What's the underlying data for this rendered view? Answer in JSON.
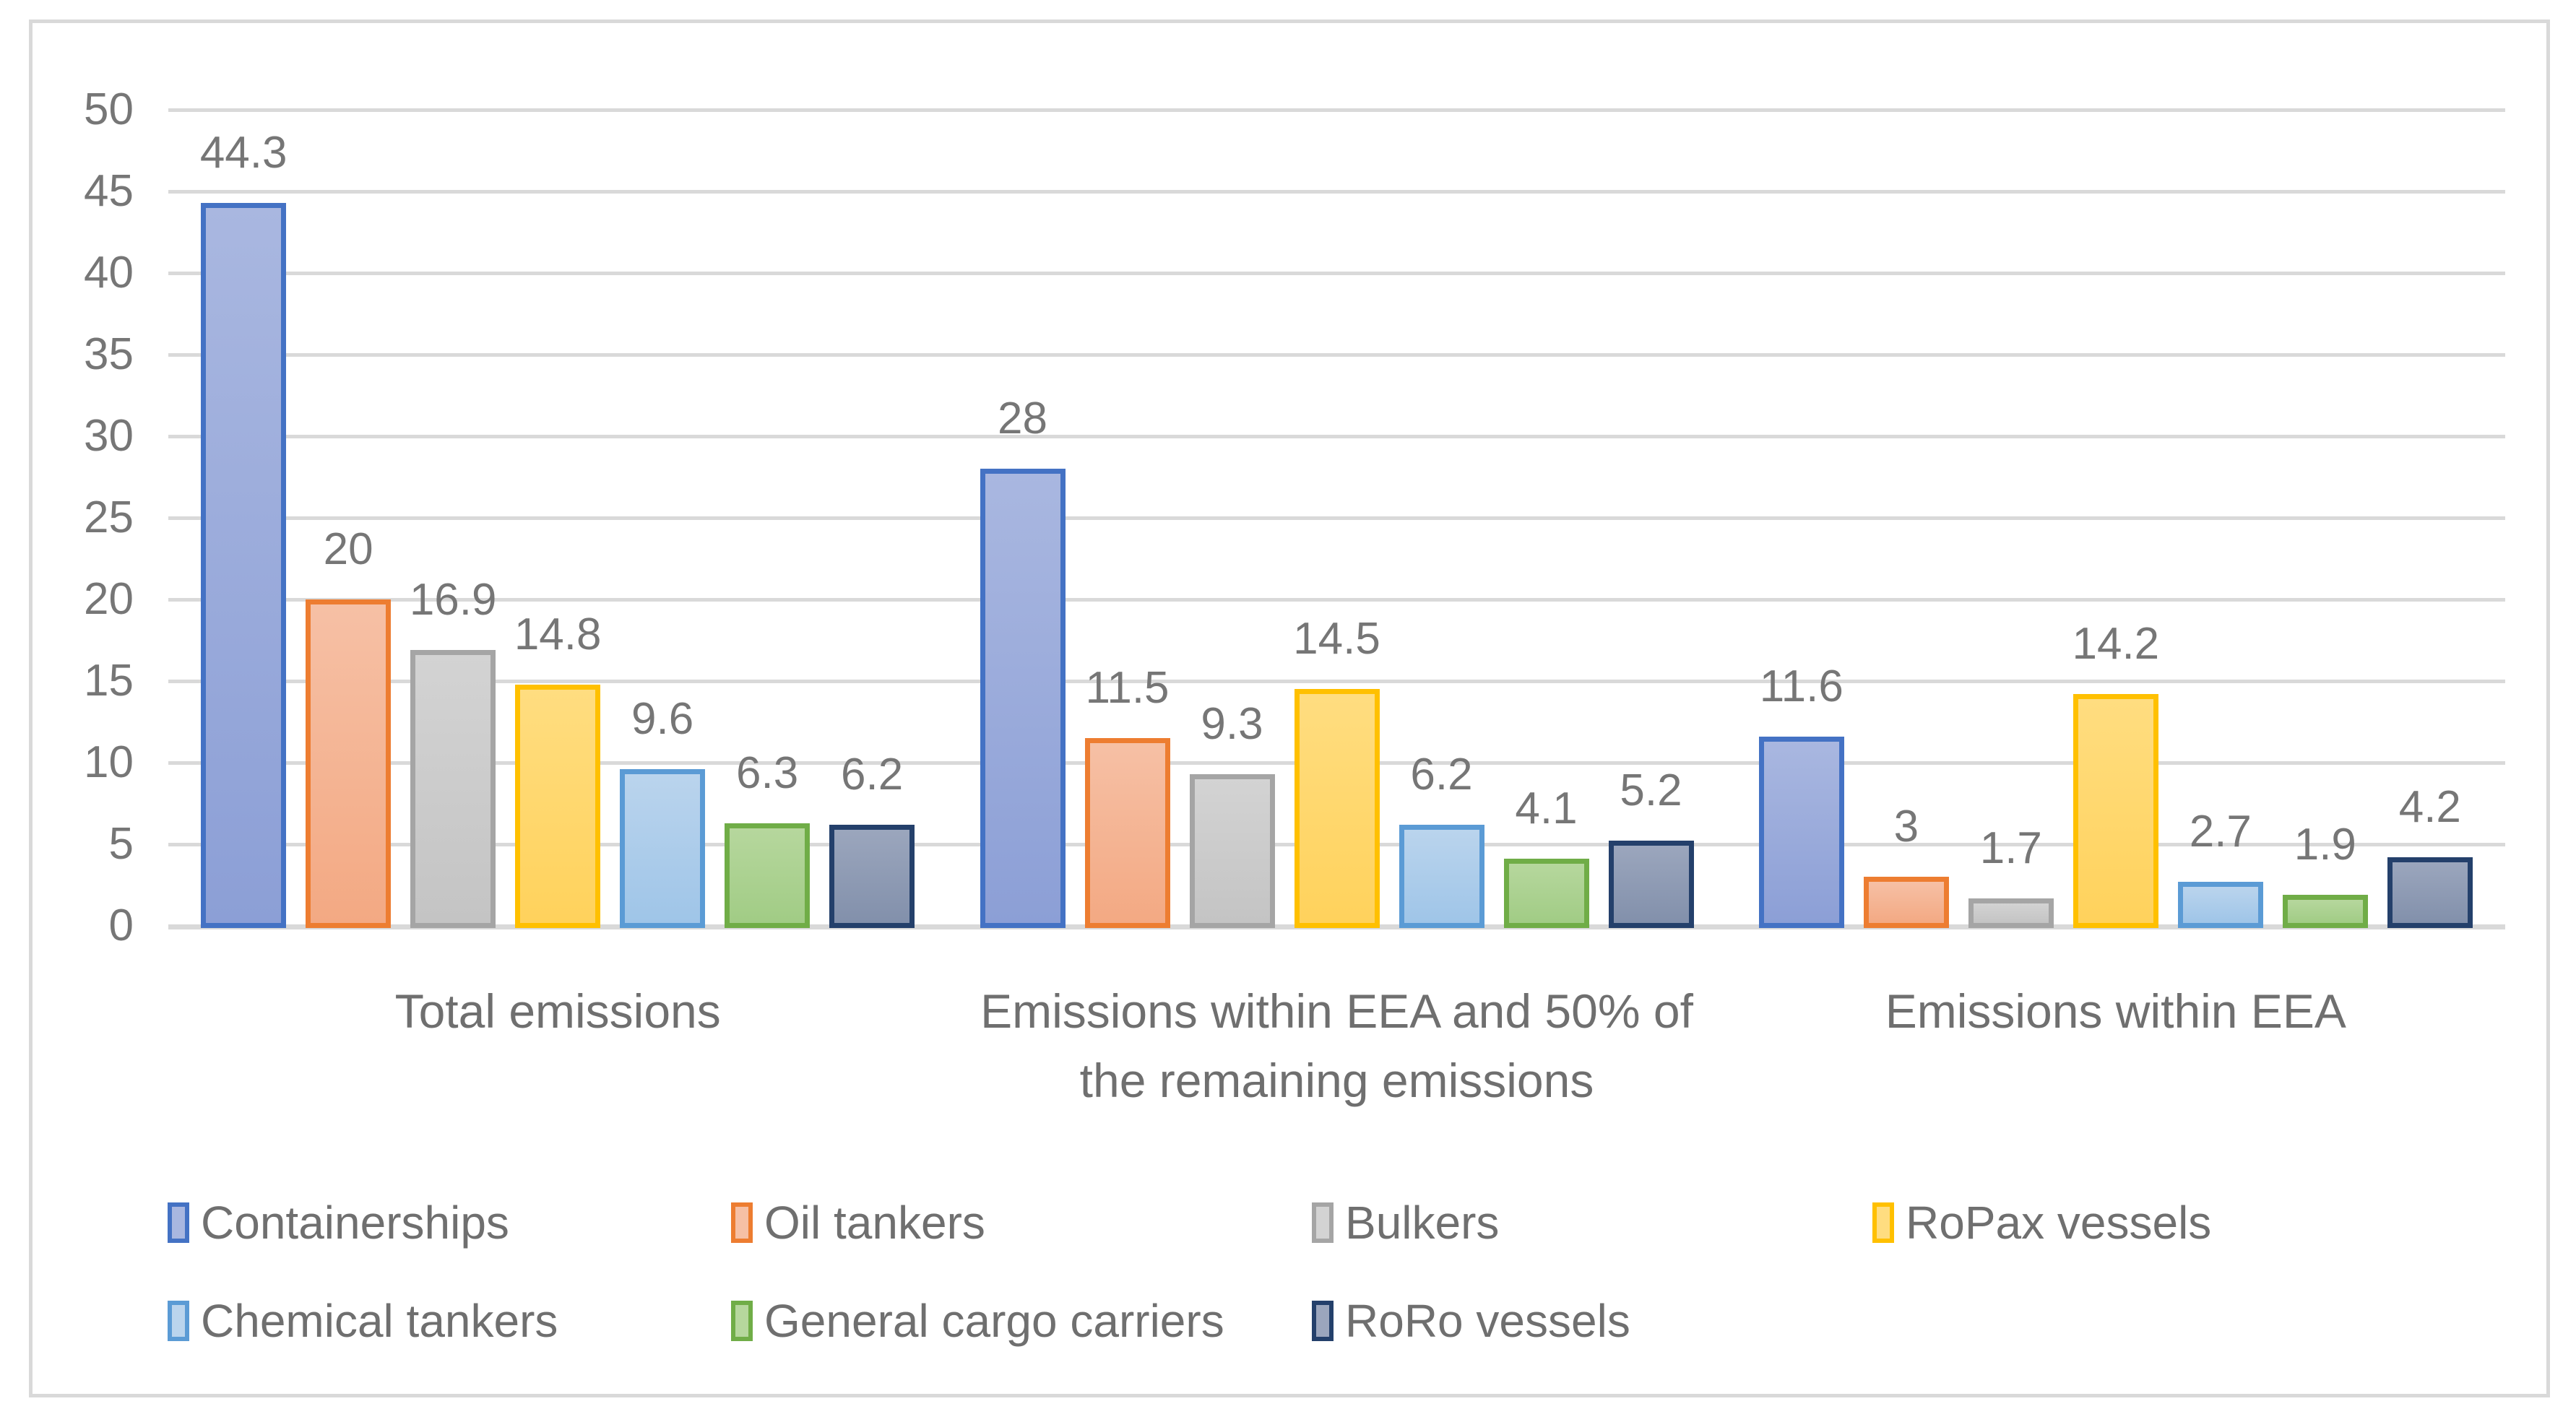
{
  "chart_data": {
    "type": "bar",
    "title": "",
    "xlabel": "",
    "ylabel": "",
    "ylim": [
      0,
      50
    ],
    "ytick_step": 5,
    "yticks": [
      "0",
      "5",
      "10",
      "15",
      "20",
      "25",
      "30",
      "35",
      "40",
      "45",
      "50"
    ],
    "grid": true,
    "legend_position": "bottom",
    "categories": [
      "Total emissions",
      "Emissions within EEA and 50% of the remaining emissions",
      "Emissions within EEA"
    ],
    "category_lines": [
      [
        "Total emissions"
      ],
      [
        "Emissions within EEA and 50% of",
        "the remaining emissions"
      ],
      [
        "Emissions within EEA"
      ]
    ],
    "series": [
      {
        "name": "Containerships",
        "values": [
          44.3,
          28,
          11.6
        ],
        "labels": [
          "44.3",
          "28",
          "11.6"
        ],
        "border": "#4472C4",
        "fill_top": "#A9B7E0",
        "fill_bottom": "#8C9FD6"
      },
      {
        "name": "Oil tankers",
        "values": [
          20,
          11.5,
          3
        ],
        "labels": [
          "20",
          "11.5",
          "3"
        ],
        "border": "#ED7D31",
        "fill_top": "#F6C0A5",
        "fill_bottom": "#F3A983"
      },
      {
        "name": "Bulkers",
        "values": [
          16.9,
          9.3,
          1.7
        ],
        "labels": [
          "16.9",
          "9.3",
          "1.7"
        ],
        "border": "#A5A5A5",
        "fill_top": "#D3D3D3",
        "fill_bottom": "#C4C4C4"
      },
      {
        "name": "RoPax vessels",
        "values": [
          14.8,
          14.5,
          14.2
        ],
        "labels": [
          "14.8",
          "14.5",
          "14.2"
        ],
        "border": "#FFC000",
        "fill_top": "#FFDD80",
        "fill_bottom": "#FFD25C"
      },
      {
        "name": "Chemical tankers",
        "values": [
          9.6,
          6.2,
          2.7
        ],
        "labels": [
          "9.6",
          "6.2",
          "2.7"
        ],
        "border": "#5B9BD5",
        "fill_top": "#BAD4ED",
        "fill_bottom": "#9FC5E8"
      },
      {
        "name": "General cargo carriers",
        "values": [
          6.3,
          4.1,
          1.9
        ],
        "labels": [
          "6.3",
          "4.1",
          "1.9"
        ],
        "border": "#70AD47",
        "fill_top": "#B6D79D",
        "fill_bottom": "#A1CC85"
      },
      {
        "name": "RoRo vessels",
        "values": [
          6.2,
          5.2,
          4.2
        ],
        "labels": [
          "6.2",
          "5.2",
          "4.2"
        ],
        "border": "#24406B",
        "fill_top": "#9BA6BD",
        "fill_bottom": "#8290AB"
      }
    ],
    "legend_rows": [
      [
        0,
        1,
        2,
        3
      ],
      [
        4,
        5,
        6
      ]
    ]
  },
  "colors": {
    "gridline": "#D9D9D9",
    "chart_border": "#D9D9D9",
    "axis_text": "#767676",
    "data_label_text": "#767676",
    "category_text": "#6F6F6F",
    "legend_text": "#6F6F6F",
    "background": "#FFFFFF"
  }
}
